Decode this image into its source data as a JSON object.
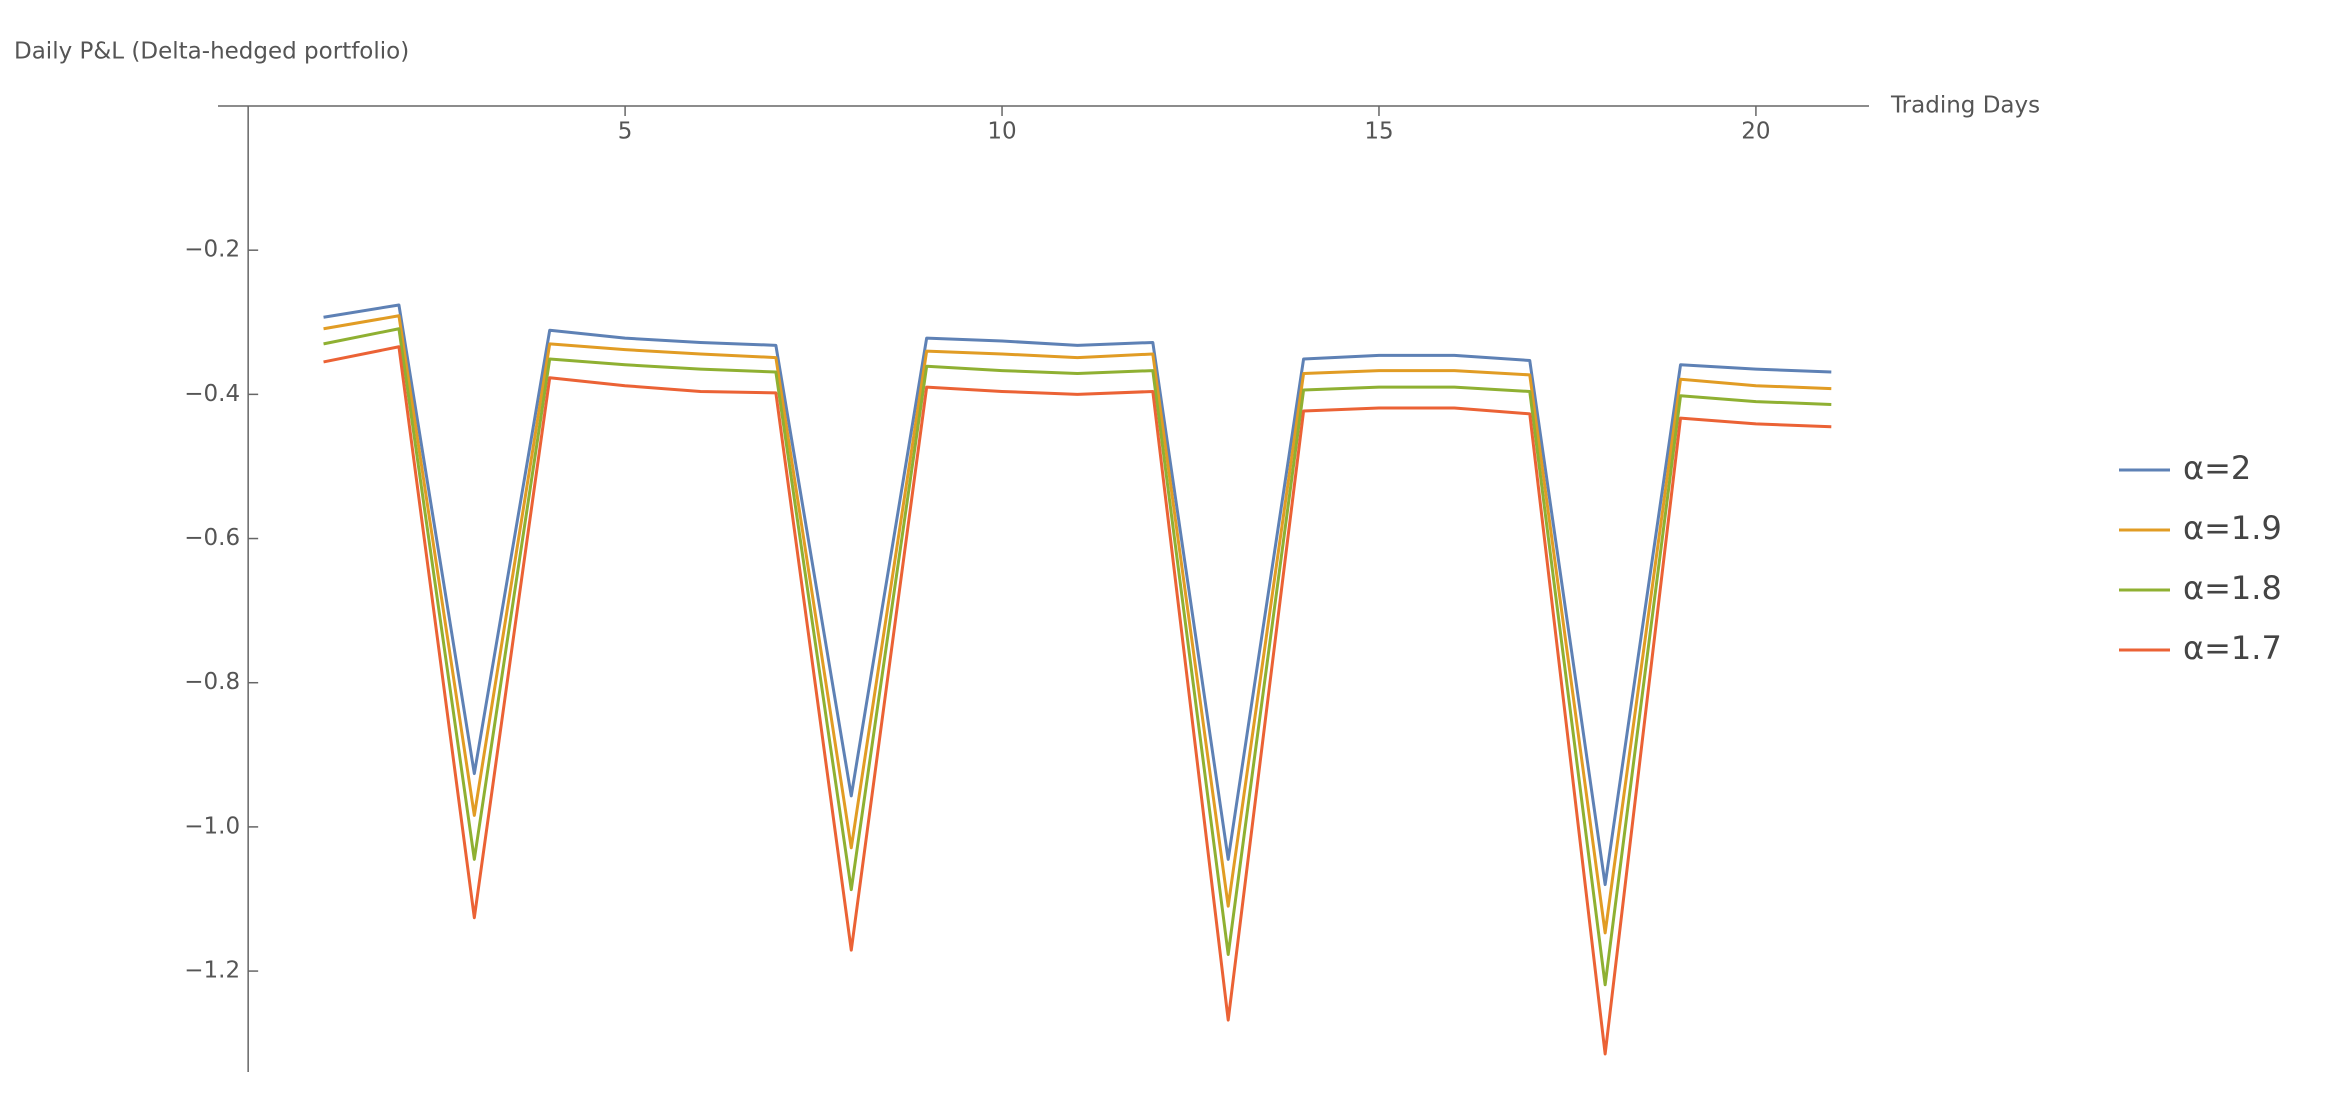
{
  "chart_data": {
    "type": "line",
    "title": "Daily P&L (Delta-hedged portfolio)",
    "x_label": "Trading Days",
    "x": [
      1,
      2,
      3,
      4,
      5,
      6,
      7,
      8,
      9,
      10,
      11,
      12,
      13,
      14,
      15,
      16,
      17,
      18,
      19,
      20,
      21
    ],
    "series": [
      {
        "name": "α=2",
        "color": "#5e81b5",
        "values": [
          -0.293,
          -0.276,
          -0.926,
          -0.311,
          -0.322,
          -0.328,
          -0.332,
          -0.957,
          -0.322,
          -0.326,
          -0.332,
          -0.328,
          -1.045,
          -0.351,
          -0.346,
          -0.346,
          -0.353,
          -1.08,
          -0.359,
          -0.365,
          -0.369
        ]
      },
      {
        "name": "α=1.9",
        "color": "#e19c24",
        "values": [
          -0.309,
          -0.291,
          -0.984,
          -0.33,
          -0.338,
          -0.344,
          -0.349,
          -1.029,
          -0.34,
          -0.344,
          -0.349,
          -0.344,
          -1.11,
          -0.371,
          -0.367,
          -0.367,
          -0.373,
          -1.147,
          -0.379,
          -0.388,
          -0.392
        ]
      },
      {
        "name": "α=1.8",
        "color": "#8fb032",
        "values": [
          -0.33,
          -0.309,
          -1.045,
          -0.351,
          -0.359,
          -0.365,
          -0.369,
          -1.087,
          -0.361,
          -0.367,
          -0.371,
          -0.367,
          -1.177,
          -0.394,
          -0.39,
          -0.39,
          -0.396,
          -1.219,
          -0.402,
          -0.41,
          -0.414
        ]
      },
      {
        "name": "α=1.7",
        "color": "#eb6235",
        "values": [
          -0.355,
          -0.334,
          -1.126,
          -0.377,
          -0.388,
          -0.396,
          -0.398,
          -1.171,
          -0.39,
          -0.396,
          -0.4,
          -0.396,
          -1.268,
          -0.423,
          -0.419,
          -0.419,
          -0.427,
          -1.315,
          -0.433,
          -0.441,
          -0.445
        ]
      }
    ],
    "xlim": [
      -0.4,
      21.5
    ],
    "ylim": [
      -1.34,
      0
    ],
    "xticks": [
      5,
      10,
      15,
      20
    ],
    "yticks": [
      {
        "value": -0.2,
        "label": "−0.2"
      },
      {
        "value": -0.4,
        "label": "−0.4"
      },
      {
        "value": -0.6,
        "label": "−0.6"
      },
      {
        "value": -0.8,
        "label": "−0.8"
      },
      {
        "value": -1.0,
        "label": "−1.0"
      },
      {
        "value": -1.2,
        "label": "−1.2"
      }
    ],
    "legend": "right"
  }
}
